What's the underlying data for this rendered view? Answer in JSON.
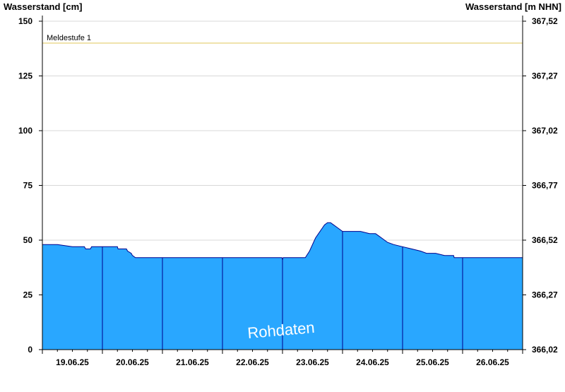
{
  "chart_data": {
    "type": "area",
    "ylabel_left": "Wasserstand [cm]",
    "ylabel_right": "Wasserstand [m NHN]",
    "ylim": [
      0,
      150
    ],
    "y_ticks_left": [
      "150",
      "125",
      "100",
      "75",
      "50",
      "25",
      "0"
    ],
    "y_ticks_right": [
      "367,52",
      "367,27",
      "367,02",
      "366,77",
      "366,52",
      "366,27",
      "366,02"
    ],
    "x_ticks": [
      "19.06.25",
      "20.06.25",
      "21.06.25",
      "22.06.25",
      "23.06.25",
      "24.06.25",
      "25.06.25",
      "26.06.25"
    ],
    "x_range_days": [
      0,
      8
    ],
    "grid": "horizontal",
    "threshold": {
      "label": "Meldestufe 1",
      "value": 140,
      "color": "#e8d27a"
    },
    "watermark": "Rohdaten",
    "colors": {
      "fill": "#29a7ff",
      "line": "#00008b",
      "grid": "#d8d8d8",
      "axis": "#000000"
    },
    "series": [
      {
        "x": [
          0,
          0.25,
          0.5,
          0.52,
          0.7,
          0.72,
          0.8,
          0.82,
          0.9,
          1.0,
          1.05,
          1.25,
          1.26,
          1.3,
          1.4,
          1.42,
          1.48,
          1.5,
          1.5,
          1.55,
          2,
          3,
          3.99,
          4.0,
          4.01,
          4.3,
          4.38,
          4.45,
          4.5,
          4.55,
          4.6,
          4.65,
          4.7,
          4.75,
          4.8,
          4.85,
          4.9,
          4.95,
          5.0,
          5.1,
          5.2,
          5.3,
          5.45,
          5.55,
          5.6,
          5.65,
          5.7,
          5.75,
          5.85,
          6.0,
          6.15,
          6.3,
          6.4,
          6.55,
          6.7,
          6.85,
          6.86,
          7,
          8
        ],
        "values": [
          48,
          48,
          47,
          47,
          47,
          46,
          46,
          47,
          47,
          47,
          47,
          47,
          46,
          46,
          46,
          45,
          44,
          43,
          43,
          42,
          42,
          42,
          42,
          41,
          42,
          42,
          42,
          45,
          48,
          51,
          53,
          55,
          57,
          58,
          58,
          57,
          56,
          55,
          54,
          54,
          54,
          54,
          53,
          53,
          52,
          51,
          50,
          49,
          48,
          47,
          46,
          45,
          44,
          44,
          43,
          43,
          42,
          42,
          42
        ]
      }
    ]
  }
}
